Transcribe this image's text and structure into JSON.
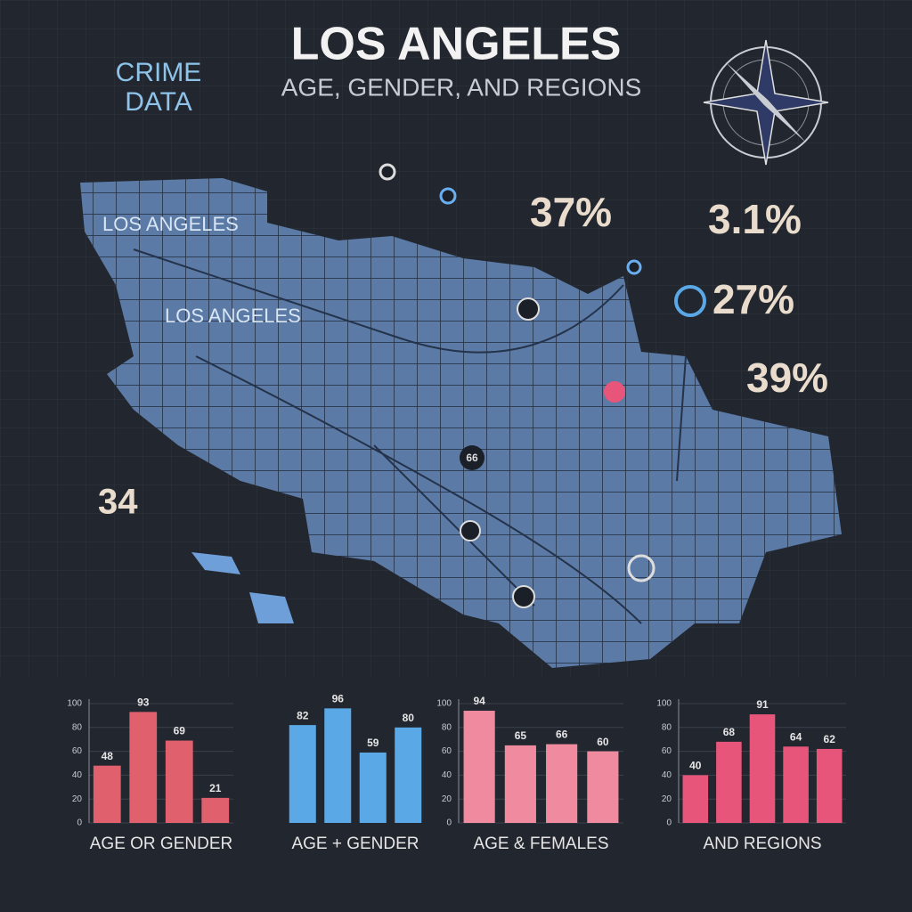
{
  "header": {
    "badge": [
      "CRIME",
      "DATA"
    ],
    "title": "LOS ANGELES",
    "subtitle": "AGE,  GENDER, AND REGIONS"
  },
  "map_labels": [
    "LOS ANGELES",
    "LOS ANGELES",
    "34",
    "66"
  ],
  "stats": [
    "37%",
    "3.1%",
    "27%",
    "39%"
  ],
  "chart_data": [
    {
      "type": "bar",
      "title": "AGE OR GENDER",
      "values": [
        48,
        93,
        69,
        21
      ],
      "color": "#e0606e",
      "ylim": [
        0,
        100
      ],
      "yticks": [
        0,
        20,
        40,
        60,
        80,
        100
      ],
      "grid": true
    },
    {
      "type": "bar",
      "title": "AGE + GENDER",
      "values": [
        82,
        96,
        59,
        80
      ],
      "color": "#5aa9e6",
      "ylim": [
        0,
        100
      ]
    },
    {
      "type": "bar",
      "title": "AGE & FEMALES",
      "values": [
        94,
        65,
        66,
        60
      ],
      "color": "#f08a9e",
      "ylim": [
        0,
        100
      ],
      "yticks": [
        0,
        20,
        40,
        60,
        80,
        100
      ],
      "grid": true
    },
    {
      "type": "bar",
      "title": "AND REGIONS",
      "values": [
        40,
        68,
        91,
        64,
        62
      ],
      "color": "#e8557a",
      "ylim": [
        0,
        100
      ],
      "yticks": [
        0,
        20,
        40,
        60,
        80,
        100
      ],
      "grid": true
    }
  ]
}
